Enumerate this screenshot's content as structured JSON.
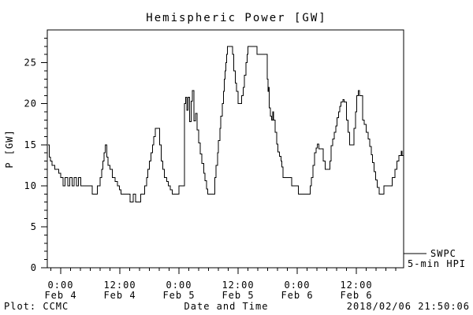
{
  "window": {
    "background": "#ffffff",
    "foreground": "#000000"
  },
  "legend": {
    "line1": "SWPC",
    "line2": "5-min HPI"
  },
  "footer": {
    "left": "Plot: CCMC",
    "right": "2018/02/06 21:50:06"
  },
  "chart_data": {
    "type": "line",
    "line_style": "step",
    "title": "Hemispheric Power [GW]",
    "xlabel": "Date and Time",
    "ylabel": "P [GW]",
    "series_name": "SWPC 5-min HPI",
    "line_color": "#000000",
    "grid": false,
    "legend_position": "right-outside-bottom",
    "x_unit": "hours since 2018-02-04 00:00",
    "xlim": [
      -2.72,
      69.6
    ],
    "ylim": [
      0,
      29
    ],
    "y_major_ticks": [
      0,
      5,
      10,
      15,
      20,
      25
    ],
    "y_minor_step": 1,
    "x_minor_step_hours": 2,
    "x_major_ticks": [
      {
        "t": 0,
        "time": "0:00",
        "date": "Feb 4"
      },
      {
        "t": 12,
        "time": "12:00",
        "date": "Feb 4"
      },
      {
        "t": 24,
        "time": "0:00",
        "date": "Feb 5"
      },
      {
        "t": 36,
        "time": "12:00",
        "date": "Feb 5"
      },
      {
        "t": 48,
        "time": "0:00",
        "date": "Feb 6"
      },
      {
        "t": 60,
        "time": "12:00",
        "date": "Feb 6"
      }
    ],
    "points": [
      [
        -2.56,
        15
      ],
      [
        -2.3,
        13.5
      ],
      [
        -2.05,
        13
      ],
      [
        -1.8,
        12.5
      ],
      [
        -1.2,
        12
      ],
      [
        -0.4,
        11.5
      ],
      [
        0.0,
        11
      ],
      [
        0.5,
        10
      ],
      [
        0.9,
        11
      ],
      [
        1.4,
        10
      ],
      [
        1.8,
        11
      ],
      [
        2.3,
        10
      ],
      [
        2.7,
        11
      ],
      [
        3.2,
        10
      ],
      [
        3.6,
        11
      ],
      [
        4.1,
        10
      ],
      [
        6.4,
        9
      ],
      [
        7.4,
        10
      ],
      [
        8.0,
        11
      ],
      [
        8.3,
        12
      ],
      [
        8.55,
        13
      ],
      [
        8.8,
        14
      ],
      [
        9.0,
        15
      ],
      [
        9.35,
        13.5
      ],
      [
        9.6,
        12.5
      ],
      [
        10.0,
        12
      ],
      [
        10.5,
        11
      ],
      [
        11.0,
        10.5
      ],
      [
        11.5,
        10
      ],
      [
        11.9,
        9.5
      ],
      [
        12.2,
        9
      ],
      [
        14.1,
        8
      ],
      [
        14.7,
        9
      ],
      [
        15.2,
        8
      ],
      [
        16.2,
        9
      ],
      [
        17.0,
        10
      ],
      [
        17.4,
        11
      ],
      [
        17.7,
        12
      ],
      [
        18.0,
        13
      ],
      [
        18.3,
        14
      ],
      [
        18.6,
        15
      ],
      [
        18.9,
        16
      ],
      [
        19.2,
        17
      ],
      [
        20.1,
        15
      ],
      [
        20.4,
        13
      ],
      [
        20.7,
        12
      ],
      [
        21.0,
        11
      ],
      [
        21.5,
        10.5
      ],
      [
        21.8,
        10
      ],
      [
        22.2,
        9.5
      ],
      [
        22.6,
        9
      ],
      [
        24.0,
        10
      ],
      [
        25.1,
        20
      ],
      [
        25.35,
        20.8
      ],
      [
        25.6,
        19.2
      ],
      [
        25.85,
        20.8
      ],
      [
        26.15,
        17.8
      ],
      [
        26.45,
        20.3
      ],
      [
        26.7,
        21.6
      ],
      [
        27.0,
        17.9
      ],
      [
        27.35,
        18.8
      ],
      [
        27.7,
        16.8
      ],
      [
        28.0,
        15.2
      ],
      [
        28.3,
        13.9
      ],
      [
        28.6,
        12.7
      ],
      [
        29.0,
        11.5
      ],
      [
        29.3,
        10.6
      ],
      [
        29.6,
        9.6
      ],
      [
        29.85,
        9
      ],
      [
        31.3,
        11
      ],
      [
        31.5,
        12.5
      ],
      [
        31.8,
        14
      ],
      [
        32.0,
        15.5
      ],
      [
        32.3,
        17
      ],
      [
        32.5,
        18.5
      ],
      [
        32.8,
        20
      ],
      [
        33.0,
        21.5
      ],
      [
        33.2,
        23
      ],
      [
        33.35,
        24
      ],
      [
        33.5,
        25
      ],
      [
        33.65,
        26
      ],
      [
        33.85,
        27
      ],
      [
        34.9,
        26
      ],
      [
        35.1,
        24
      ],
      [
        35.4,
        22.5
      ],
      [
        35.7,
        21.5
      ],
      [
        36.0,
        20
      ],
      [
        36.7,
        21
      ],
      [
        37.0,
        22
      ],
      [
        37.3,
        23.5
      ],
      [
        37.6,
        25
      ],
      [
        37.8,
        26
      ],
      [
        38.0,
        27
      ],
      [
        39.8,
        26
      ],
      [
        41.9,
        23
      ],
      [
        42.05,
        21.5
      ],
      [
        42.2,
        22
      ],
      [
        42.35,
        19.5
      ],
      [
        42.55,
        18.5
      ],
      [
        42.8,
        18
      ],
      [
        43.0,
        19
      ],
      [
        43.2,
        18
      ],
      [
        43.5,
        16.5
      ],
      [
        43.8,
        15.1
      ],
      [
        44.1,
        14.1
      ],
      [
        44.4,
        13.6
      ],
      [
        44.7,
        13
      ],
      [
        44.9,
        12.3
      ],
      [
        45.1,
        11
      ],
      [
        46.9,
        10
      ],
      [
        48.2,
        9
      ],
      [
        50.6,
        10
      ],
      [
        50.9,
        11
      ],
      [
        51.2,
        12.5
      ],
      [
        51.5,
        14
      ],
      [
        51.8,
        14.6
      ],
      [
        52.1,
        15.1
      ],
      [
        52.4,
        14.5
      ],
      [
        53.3,
        13
      ],
      [
        53.7,
        12
      ],
      [
        54.6,
        13
      ],
      [
        54.9,
        14.9
      ],
      [
        55.2,
        15.7
      ],
      [
        55.5,
        16.5
      ],
      [
        55.8,
        17.3
      ],
      [
        56.1,
        18.3
      ],
      [
        56.4,
        19
      ],
      [
        56.6,
        19.7
      ],
      [
        56.9,
        20.2
      ],
      [
        57.3,
        20.5
      ],
      [
        57.5,
        20.2
      ],
      [
        58.0,
        18
      ],
      [
        58.3,
        16.5
      ],
      [
        58.6,
        15
      ],
      [
        59.5,
        17
      ],
      [
        59.8,
        19
      ],
      [
        60.1,
        21
      ],
      [
        60.4,
        21.6
      ],
      [
        60.6,
        21
      ],
      [
        61.3,
        18
      ],
      [
        61.6,
        17.5
      ],
      [
        62.0,
        16.5
      ],
      [
        62.4,
        15.7
      ],
      [
        62.7,
        14.8
      ],
      [
        63.0,
        13.8
      ],
      [
        63.3,
        12.8
      ],
      [
        63.6,
        11.7
      ],
      [
        63.9,
        10.7
      ],
      [
        64.2,
        9.8
      ],
      [
        64.6,
        9
      ],
      [
        65.6,
        10
      ],
      [
        67.3,
        11
      ],
      [
        67.8,
        12
      ],
      [
        68.2,
        13
      ],
      [
        68.6,
        13.7
      ],
      [
        69.1,
        14.2
      ],
      [
        69.3,
        13.7
      ]
    ]
  }
}
